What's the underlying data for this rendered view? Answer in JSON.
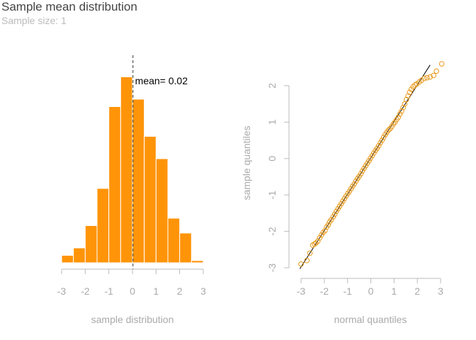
{
  "header": {
    "title": "Sample mean distribution",
    "subtitle": "Sample size: 1"
  },
  "colors": {
    "bar_fill": "#ff9409",
    "bar_border": "#ffffff",
    "point_color": "#e89a1c",
    "axis_color": "#bbbbbb",
    "text_muted": "#aaaaaa",
    "mean_line": "#555555",
    "ref_line": "#000000"
  },
  "chart_data": [
    {
      "type": "bar",
      "name": "histogram",
      "xlabel": "sample distribution",
      "ylabel": "",
      "xlim": [
        -3,
        3
      ],
      "x_ticks": [
        -3,
        -2,
        -1,
        0,
        1,
        2,
        3
      ],
      "bins": [
        {
          "from": -3.0,
          "to": -2.5,
          "count": 1
        },
        {
          "from": -2.5,
          "to": -2.0,
          "count": 2
        },
        {
          "from": -2.0,
          "to": -1.5,
          "count": 5
        },
        {
          "from": -1.5,
          "to": -1.0,
          "count": 10
        },
        {
          "from": -1.0,
          "to": -0.5,
          "count": 21
        },
        {
          "from": -0.5,
          "to": 0.0,
          "count": 25
        },
        {
          "from": 0.0,
          "to": 0.5,
          "count": 22
        },
        {
          "from": 0.5,
          "to": 1.0,
          "count": 17
        },
        {
          "from": 1.0,
          "to": 1.5,
          "count": 14
        },
        {
          "from": 1.5,
          "to": 2.0,
          "count": 6
        },
        {
          "from": 2.0,
          "to": 2.5,
          "count": 4
        },
        {
          "from": 2.5,
          "to": 3.0,
          "count": 0.3
        }
      ],
      "mean": 0.02,
      "mean_label": "mean= 0.02",
      "grid": false
    },
    {
      "type": "scatter",
      "name": "qq-plot",
      "xlabel": "normal quantiles",
      "ylabel": "sample quantiles",
      "xlim": [
        -3,
        3
      ],
      "ylim": [
        -3,
        2.6
      ],
      "x_ticks": [
        -3,
        -2,
        -1,
        0,
        1,
        2,
        3
      ],
      "y_ticks": [
        -3,
        -2,
        -1,
        0,
        1,
        2
      ],
      "reference_line": {
        "intercept": 0.02,
        "slope": 1.0
      },
      "points": [
        [
          -3.0,
          -2.9
        ],
        [
          -2.75,
          -2.8
        ],
        [
          -2.62,
          -2.6
        ],
        [
          -2.5,
          -2.38
        ],
        [
          -2.42,
          -2.35
        ],
        [
          -2.36,
          -2.32
        ],
        [
          -2.28,
          -2.27
        ],
        [
          -2.2,
          -2.18
        ],
        [
          -2.12,
          -2.1
        ],
        [
          -2.05,
          -2.03
        ],
        [
          -1.97,
          -1.98
        ],
        [
          -1.9,
          -1.88
        ],
        [
          -1.83,
          -1.82
        ],
        [
          -1.77,
          -1.74
        ],
        [
          -1.7,
          -1.68
        ],
        [
          -1.62,
          -1.6
        ],
        [
          -1.55,
          -1.53
        ],
        [
          -1.48,
          -1.45
        ],
        [
          -1.41,
          -1.38
        ],
        [
          -1.34,
          -1.31
        ],
        [
          -1.27,
          -1.24
        ],
        [
          -1.2,
          -1.17
        ],
        [
          -1.13,
          -1.1
        ],
        [
          -1.06,
          -1.03
        ],
        [
          -0.99,
          -0.96
        ],
        [
          -0.92,
          -0.9
        ],
        [
          -0.85,
          -0.83
        ],
        [
          -0.78,
          -0.76
        ],
        [
          -0.71,
          -0.7
        ],
        [
          -0.64,
          -0.62
        ],
        [
          -0.57,
          -0.55
        ],
        [
          -0.5,
          -0.49
        ],
        [
          -0.43,
          -0.42
        ],
        [
          -0.36,
          -0.34
        ],
        [
          -0.29,
          -0.27
        ],
        [
          -0.22,
          -0.2
        ],
        [
          -0.15,
          -0.13
        ],
        [
          -0.08,
          -0.06
        ],
        [
          -0.01,
          0.01
        ],
        [
          0.06,
          0.08
        ],
        [
          0.13,
          0.15
        ],
        [
          0.2,
          0.22
        ],
        [
          0.27,
          0.28
        ],
        [
          0.34,
          0.35
        ],
        [
          0.41,
          0.43
        ],
        [
          0.48,
          0.5
        ],
        [
          0.55,
          0.58
        ],
        [
          0.62,
          0.66
        ],
        [
          0.69,
          0.72
        ],
        [
          0.76,
          0.78
        ],
        [
          0.83,
          0.82
        ],
        [
          0.9,
          0.88
        ],
        [
          0.97,
          0.95
        ],
        [
          1.04,
          1.0
        ],
        [
          1.11,
          1.07
        ],
        [
          1.18,
          1.13
        ],
        [
          1.25,
          1.22
        ],
        [
          1.32,
          1.3
        ],
        [
          1.39,
          1.4
        ],
        [
          1.46,
          1.5
        ],
        [
          1.53,
          1.62
        ],
        [
          1.6,
          1.72
        ],
        [
          1.67,
          1.82
        ],
        [
          1.74,
          1.9
        ],
        [
          1.82,
          1.97
        ],
        [
          1.9,
          2.02
        ],
        [
          1.98,
          2.05
        ],
        [
          2.08,
          2.1
        ],
        [
          2.18,
          2.15
        ],
        [
          2.3,
          2.2
        ],
        [
          2.42,
          2.22
        ],
        [
          2.55,
          2.24
        ],
        [
          2.7,
          2.28
        ],
        [
          2.82,
          2.4
        ],
        [
          3.05,
          2.6
        ]
      ],
      "grid": false
    }
  ]
}
